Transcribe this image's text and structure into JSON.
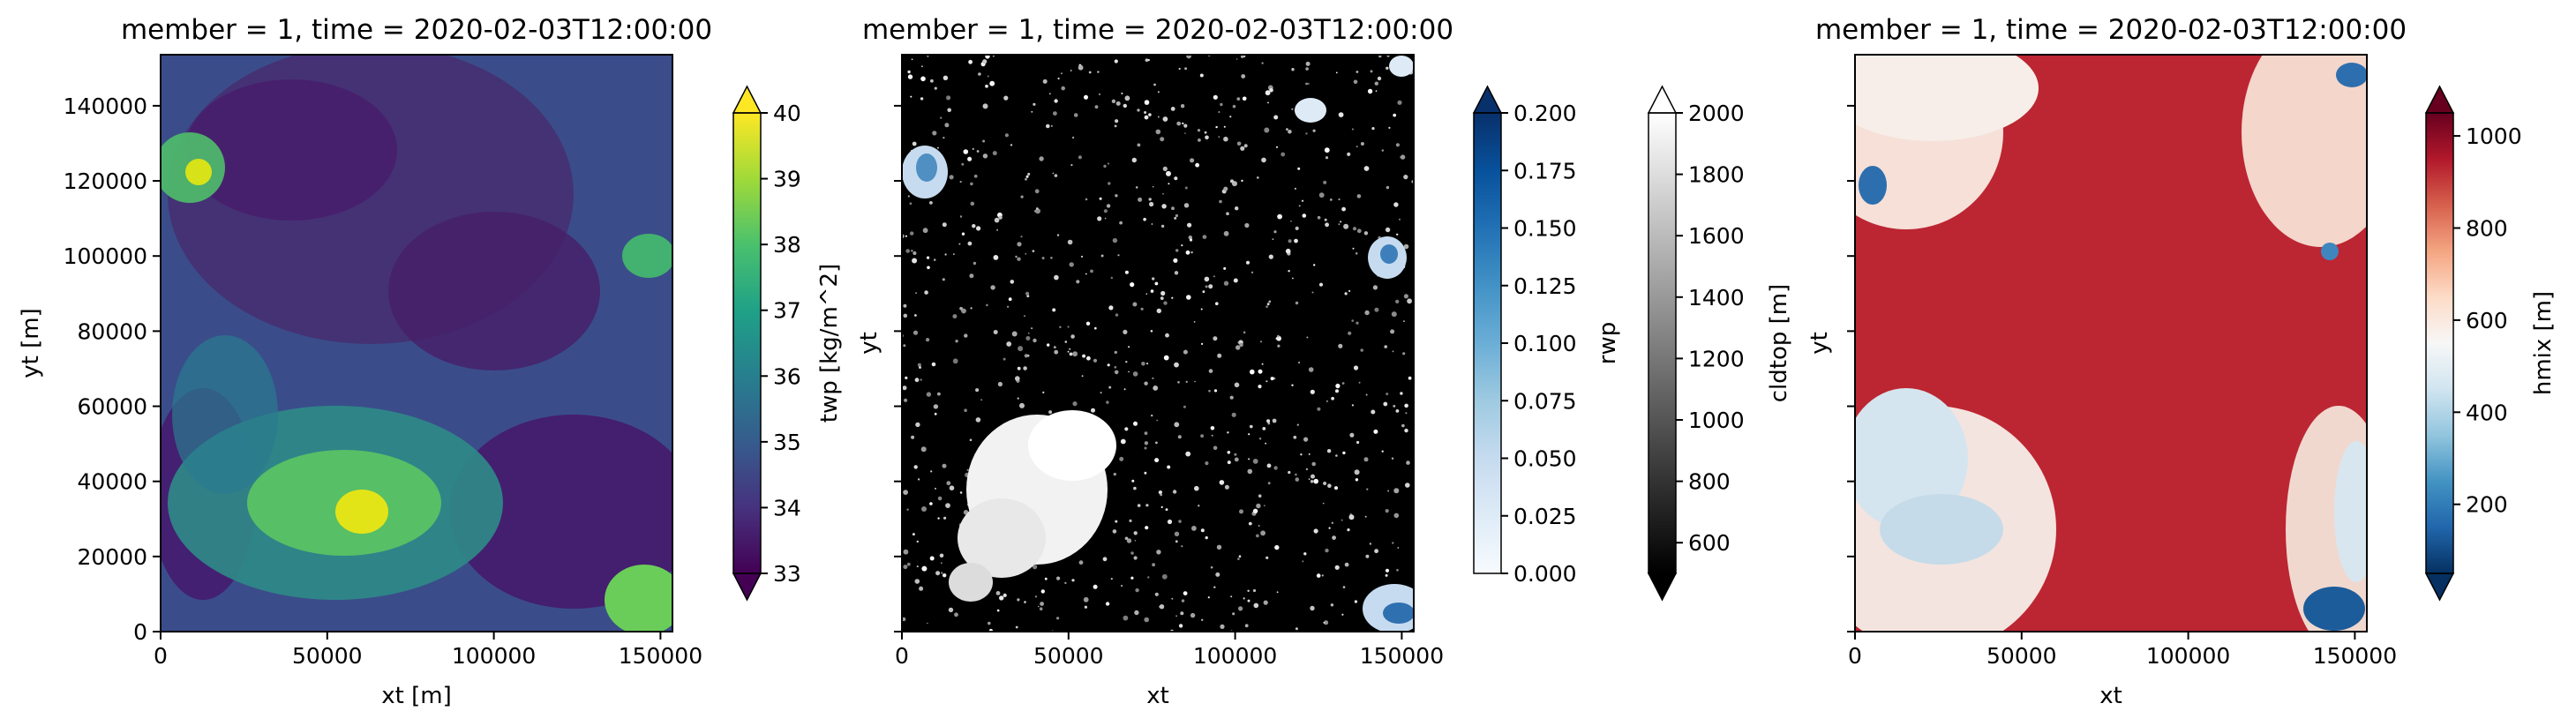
{
  "chart_data": [
    {
      "type": "heatmap",
      "title": "member = 1, time = 2020-02-03T12:00:00",
      "xlabel": "xt [m]",
      "ylabel": "yt [m]",
      "xlim": [
        0,
        153600
      ],
      "ylim": [
        0,
        153600
      ],
      "xticks": [
        0,
        50000,
        100000,
        150000
      ],
      "xtick_labels": [
        "0",
        "50000",
        "100000",
        "150000"
      ],
      "yticks": [
        0,
        20000,
        40000,
        60000,
        80000,
        100000,
        120000,
        140000
      ],
      "ytick_labels": [
        "0",
        "20000",
        "40000",
        "60000",
        "80000",
        "100000",
        "120000",
        "140000"
      ],
      "colormap": "viridis",
      "colorbars": [
        {
          "label": "twp [kg/m^2]",
          "range": [
            33,
            40
          ],
          "extend": "both",
          "ticks": [
            33,
            34,
            35,
            36,
            37,
            38,
            39,
            40
          ],
          "tick_labels": [
            "33",
            "34",
            "35",
            "36",
            "37",
            "38",
            "39",
            "40"
          ],
          "colors": [
            "#440154",
            "#46327e",
            "#365c8d",
            "#277f8e",
            "#1fa187",
            "#4ac16d",
            "#a0da39",
            "#fde725"
          ]
        }
      ]
    },
    {
      "type": "heatmap",
      "title": "member = 1, time = 2020-02-03T12:00:00",
      "xlabel": "xt",
      "ylabel": "yt",
      "xlim": [
        0,
        153600
      ],
      "ylim": [
        0,
        153600
      ],
      "xticks": [
        0,
        50000,
        100000,
        150000
      ],
      "xtick_labels": [
        "0",
        "50000",
        "100000",
        "150000"
      ],
      "colormap": "Blues (rwp) over Greys_r (cldtop)",
      "colorbars": [
        {
          "label": "rwp",
          "range": [
            0,
            0.2
          ],
          "extend": "max",
          "ticks": [
            0,
            0.025,
            0.05,
            0.075,
            0.1,
            0.125,
            0.15,
            0.175,
            0.2
          ],
          "tick_labels": [
            "0.000",
            "0.025",
            "0.050",
            "0.075",
            "0.100",
            "0.125",
            "0.150",
            "0.175",
            "0.200"
          ],
          "colors": [
            "#f7fbff",
            "#deebf7",
            "#c6dbef",
            "#9ecae1",
            "#6baed6",
            "#4292c6",
            "#2171b5",
            "#08519c",
            "#08306b"
          ]
        },
        {
          "label": "cldtop [m]",
          "range": [
            500,
            2000
          ],
          "extend": "both",
          "ticks": [
            600,
            800,
            1000,
            1200,
            1400,
            1600,
            1800,
            2000
          ],
          "tick_labels": [
            "600",
            "800",
            "1000",
            "1200",
            "1400",
            "1600",
            "1800",
            "2000"
          ],
          "colors": [
            "#000000",
            "#ffffff"
          ]
        }
      ]
    },
    {
      "type": "heatmap",
      "title": "member = 1, time = 2020-02-03T12:00:00",
      "xlabel": "xt",
      "ylabel": "yt",
      "xlim": [
        0,
        153600
      ],
      "ylim": [
        0,
        153600
      ],
      "xticks": [
        0,
        50000,
        100000,
        150000
      ],
      "xtick_labels": [
        "0",
        "50000",
        "100000",
        "150000"
      ],
      "colormap": "RdBu_r",
      "colorbars": [
        {
          "label": "hmix [m]",
          "range": [
            50,
            1050
          ],
          "extend": "both",
          "ticks": [
            200,
            400,
            600,
            800,
            1000
          ],
          "tick_labels": [
            "200",
            "400",
            "600",
            "800",
            "1000"
          ],
          "colors": [
            "#053061",
            "#2166ac",
            "#4393c3",
            "#92c5de",
            "#d1e5f0",
            "#f7f7f7",
            "#fddbc7",
            "#f4a582",
            "#d6604d",
            "#b2182b",
            "#67001f"
          ]
        }
      ]
    }
  ]
}
